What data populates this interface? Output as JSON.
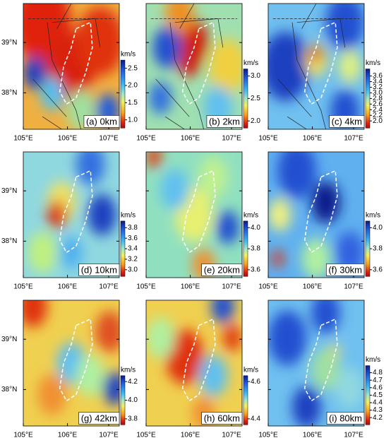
{
  "axes": {
    "xticks": [
      "105°E",
      "106°E",
      "107°E"
    ],
    "yticks": [
      "39°N",
      "38°N"
    ]
  },
  "panels": [
    {
      "label": "(a) 0km",
      "colorbar": {
        "unit": "km/s",
        "ticks": [
          "2.5",
          "2.0",
          "1.5",
          "1.0"
        ]
      }
    },
    {
      "label": "(b) 2km",
      "colorbar": {
        "unit": "km/s",
        "ticks": [
          "3.0",
          "2.5",
          "2.0"
        ]
      }
    },
    {
      "label": "(c) 4km",
      "colorbar": {
        "unit": "km/s",
        "ticks": [
          "3.6",
          "3.4",
          "3.2",
          "3.0",
          "2.8",
          "2.6",
          "2.4",
          "2.2",
          "2.0"
        ]
      }
    },
    {
      "label": "(d) 10km",
      "colorbar": {
        "unit": "km/s",
        "ticks": [
          "3.8",
          "3.6",
          "3.4",
          "3.2",
          "3.0"
        ]
      }
    },
    {
      "label": "(e) 20km",
      "colorbar": {
        "unit": "km/s",
        "ticks": [
          "4.0",
          "3.8",
          "3.6"
        ]
      }
    },
    {
      "label": "(f) 30km",
      "colorbar": {
        "unit": "km/s",
        "ticks": [
          "4.0",
          "3.8",
          "3.6"
        ]
      }
    },
    {
      "label": "(g) 42km",
      "colorbar": {
        "unit": "km/s",
        "ticks": [
          "4.2",
          "4.0",
          "3.8"
        ]
      }
    },
    {
      "label": "(h) 60km",
      "colorbar": {
        "unit": "km/s",
        "ticks": [
          "4.6",
          "4.4"
        ]
      }
    },
    {
      "label": "(i) 80km",
      "colorbar": {
        "unit": "km/s",
        "ticks": [
          "4.8",
          "4.7",
          "4.6",
          "4.5",
          "4.4",
          "4.3",
          "4.2"
        ]
      }
    }
  ]
}
